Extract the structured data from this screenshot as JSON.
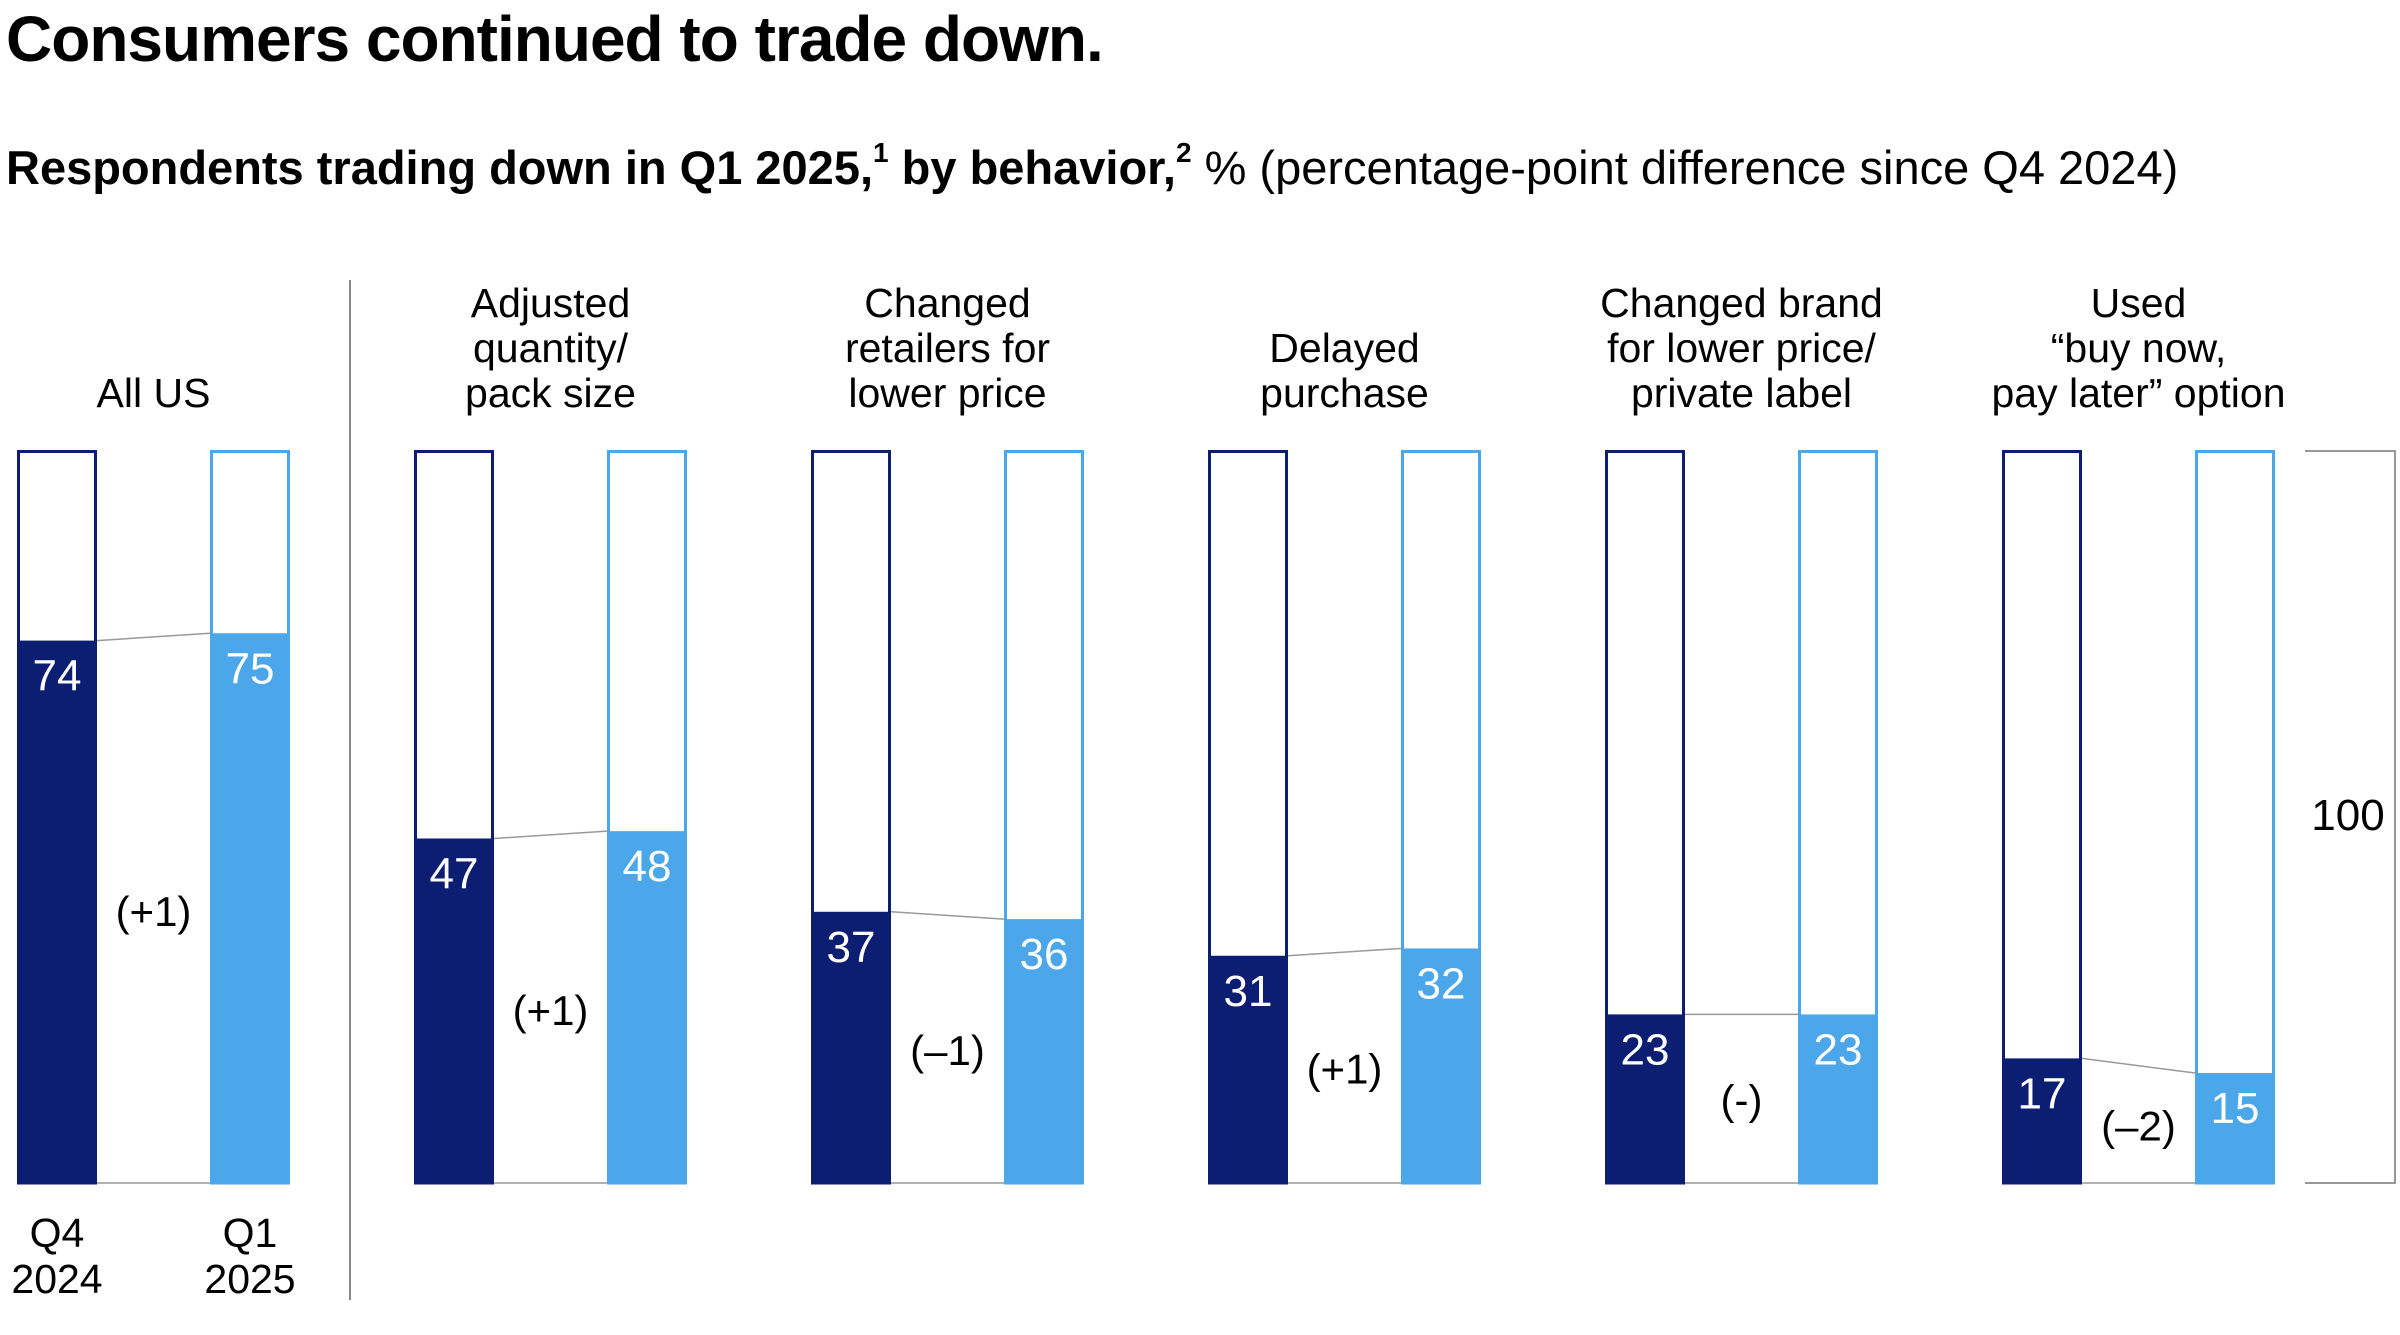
{
  "title": "Consumers continued to trade down.",
  "subtitle": {
    "part1": "Respondents trading down in Q1 2025,",
    "fn1": "1",
    "part2": " by behavior,",
    "fn2": "2",
    "part3": " % (percentage-point difference since Q4 2024)"
  },
  "colors": {
    "q4": "#0c1e72",
    "q1": "#4ba6ea",
    "divider": "#888888"
  },
  "chart_data": {
    "type": "bar",
    "title": "Consumers continued to trade down.",
    "series": [
      {
        "name": "Q4 2024",
        "values": [
          74,
          47,
          37,
          31,
          23,
          17
        ]
      },
      {
        "name": "Q1 2025",
        "values": [
          75,
          48,
          36,
          32,
          23,
          15
        ]
      }
    ],
    "categories": [
      {
        "lines": [
          "All US"
        ],
        "diff": "(+1)"
      },
      {
        "lines": [
          "Adjusted",
          "quantity/",
          "pack size"
        ],
        "diff": "(+1)"
      },
      {
        "lines": [
          "Changed",
          "retailers for",
          "lower price"
        ],
        "diff": "(–1)"
      },
      {
        "lines": [
          "Delayed",
          "purchase"
        ],
        "diff": "(+1)"
      },
      {
        "lines": [
          "Changed brand",
          "for lower price/",
          "private label"
        ],
        "diff": "(-)"
      },
      {
        "lines": [
          "Used",
          "“buy now,",
          "pay later” option"
        ],
        "diff": "(–2)"
      }
    ],
    "x_tick_labels": [
      [
        "Q4",
        "2024"
      ],
      [
        "Q1",
        "2025"
      ]
    ],
    "scale_label": "100",
    "ylim": [
      0,
      100
    ]
  }
}
